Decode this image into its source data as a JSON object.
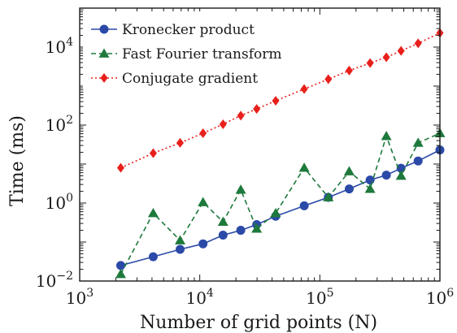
{
  "chart_data": {
    "type": "line",
    "title": "",
    "xlabel": "Number of grid points (N)",
    "ylabel": "Time (ms)",
    "xscale": "log",
    "yscale": "log",
    "xlim": [
      1000,
      1000000
    ],
    "ylim": [
      0.01,
      100000
    ],
    "x_ticks": [
      {
        "value": 1000,
        "base": "10",
        "exp": "3"
      },
      {
        "value": 10000,
        "base": "10",
        "exp": "4"
      },
      {
        "value": 100000,
        "base": "10",
        "exp": "5"
      },
      {
        "value": 1000000,
        "base": "10",
        "exp": "6"
      }
    ],
    "y_ticks": [
      {
        "value": 0.01,
        "base": "10",
        "exp": "−2"
      },
      {
        "value": 1,
        "base": "10",
        "exp": "0"
      },
      {
        "value": 100,
        "base": "10",
        "exp": "2"
      },
      {
        "value": 10000,
        "base": "10",
        "exp": "4"
      }
    ],
    "legend_position": "top-left",
    "grid": false,
    "series": [
      {
        "name": "Kronecker product",
        "color": "#2b4aa8",
        "dash": "",
        "marker": "circle",
        "x": [
          2197,
          4096,
          6859,
          10648,
          15625,
          21952,
          29791,
          42875,
          74088,
          117649,
          175616,
          262144,
          357911,
          474552,
          658503,
          1000000
        ],
        "y": [
          0.025,
          0.042,
          0.065,
          0.09,
          0.15,
          0.2,
          0.28,
          0.46,
          0.85,
          1.4,
          2.3,
          3.9,
          5.2,
          7.8,
          12,
          23
        ]
      },
      {
        "name": "Fast Fourier transform",
        "color": "#1e7a3c",
        "dash": "6,4",
        "marker": "triangle",
        "x": [
          2197,
          4096,
          6859,
          10648,
          15625,
          21952,
          29791,
          42875,
          74088,
          117649,
          175616,
          262144,
          357911,
          474552,
          658503,
          1000000
        ],
        "y": [
          0.015,
          0.55,
          0.11,
          1.05,
          0.33,
          2.2,
          0.22,
          0.55,
          8,
          1.4,
          6.5,
          2.3,
          52,
          5,
          35,
          62
        ]
      },
      {
        "name": "Conjugate gradient",
        "color": "#e8201c",
        "dash": "2,3",
        "marker": "diamond",
        "x": [
          2197,
          4096,
          6859,
          10648,
          15625,
          21952,
          29791,
          42875,
          74088,
          117649,
          175616,
          262144,
          357911,
          474552,
          658503,
          1000000
        ],
        "y": [
          8,
          19,
          35,
          62,
          105,
          175,
          260,
          420,
          840,
          1500,
          2500,
          3900,
          5500,
          8000,
          12500,
          23000
        ]
      }
    ]
  }
}
